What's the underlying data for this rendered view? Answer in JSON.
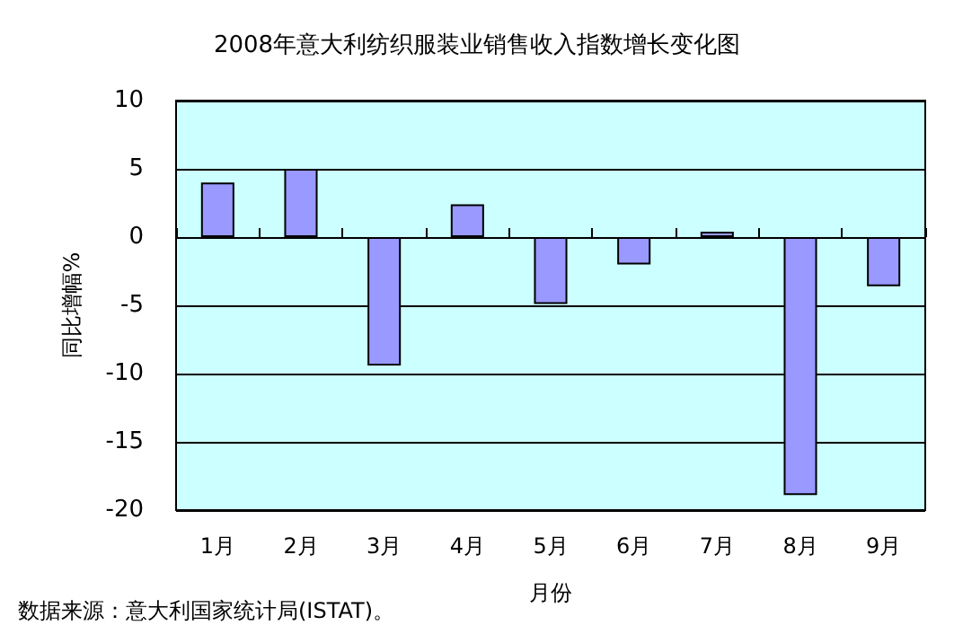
{
  "chart_data": {
    "type": "bar",
    "title": "2008年意大利纺织服装业销售收入指数增长变化图",
    "xlabel": "月份",
    "ylabel": "同比增幅%",
    "categories": [
      "1月",
      "2月",
      "3月",
      "4月",
      "5月",
      "6月",
      "7月",
      "8月",
      "9月"
    ],
    "values": [
      4,
      5,
      -9.4,
      2.4,
      -4.9,
      -2,
      0.4,
      -18.9,
      -3.6
    ],
    "color": "#9999ff",
    "ylim": [
      -20,
      10
    ],
    "yticks": [
      -20,
      -15,
      -10,
      -5,
      0,
      5,
      10
    ],
    "grid": "y",
    "annotations": [
      "数据来源：意大利国家统计局(ISTAT)。"
    ]
  }
}
